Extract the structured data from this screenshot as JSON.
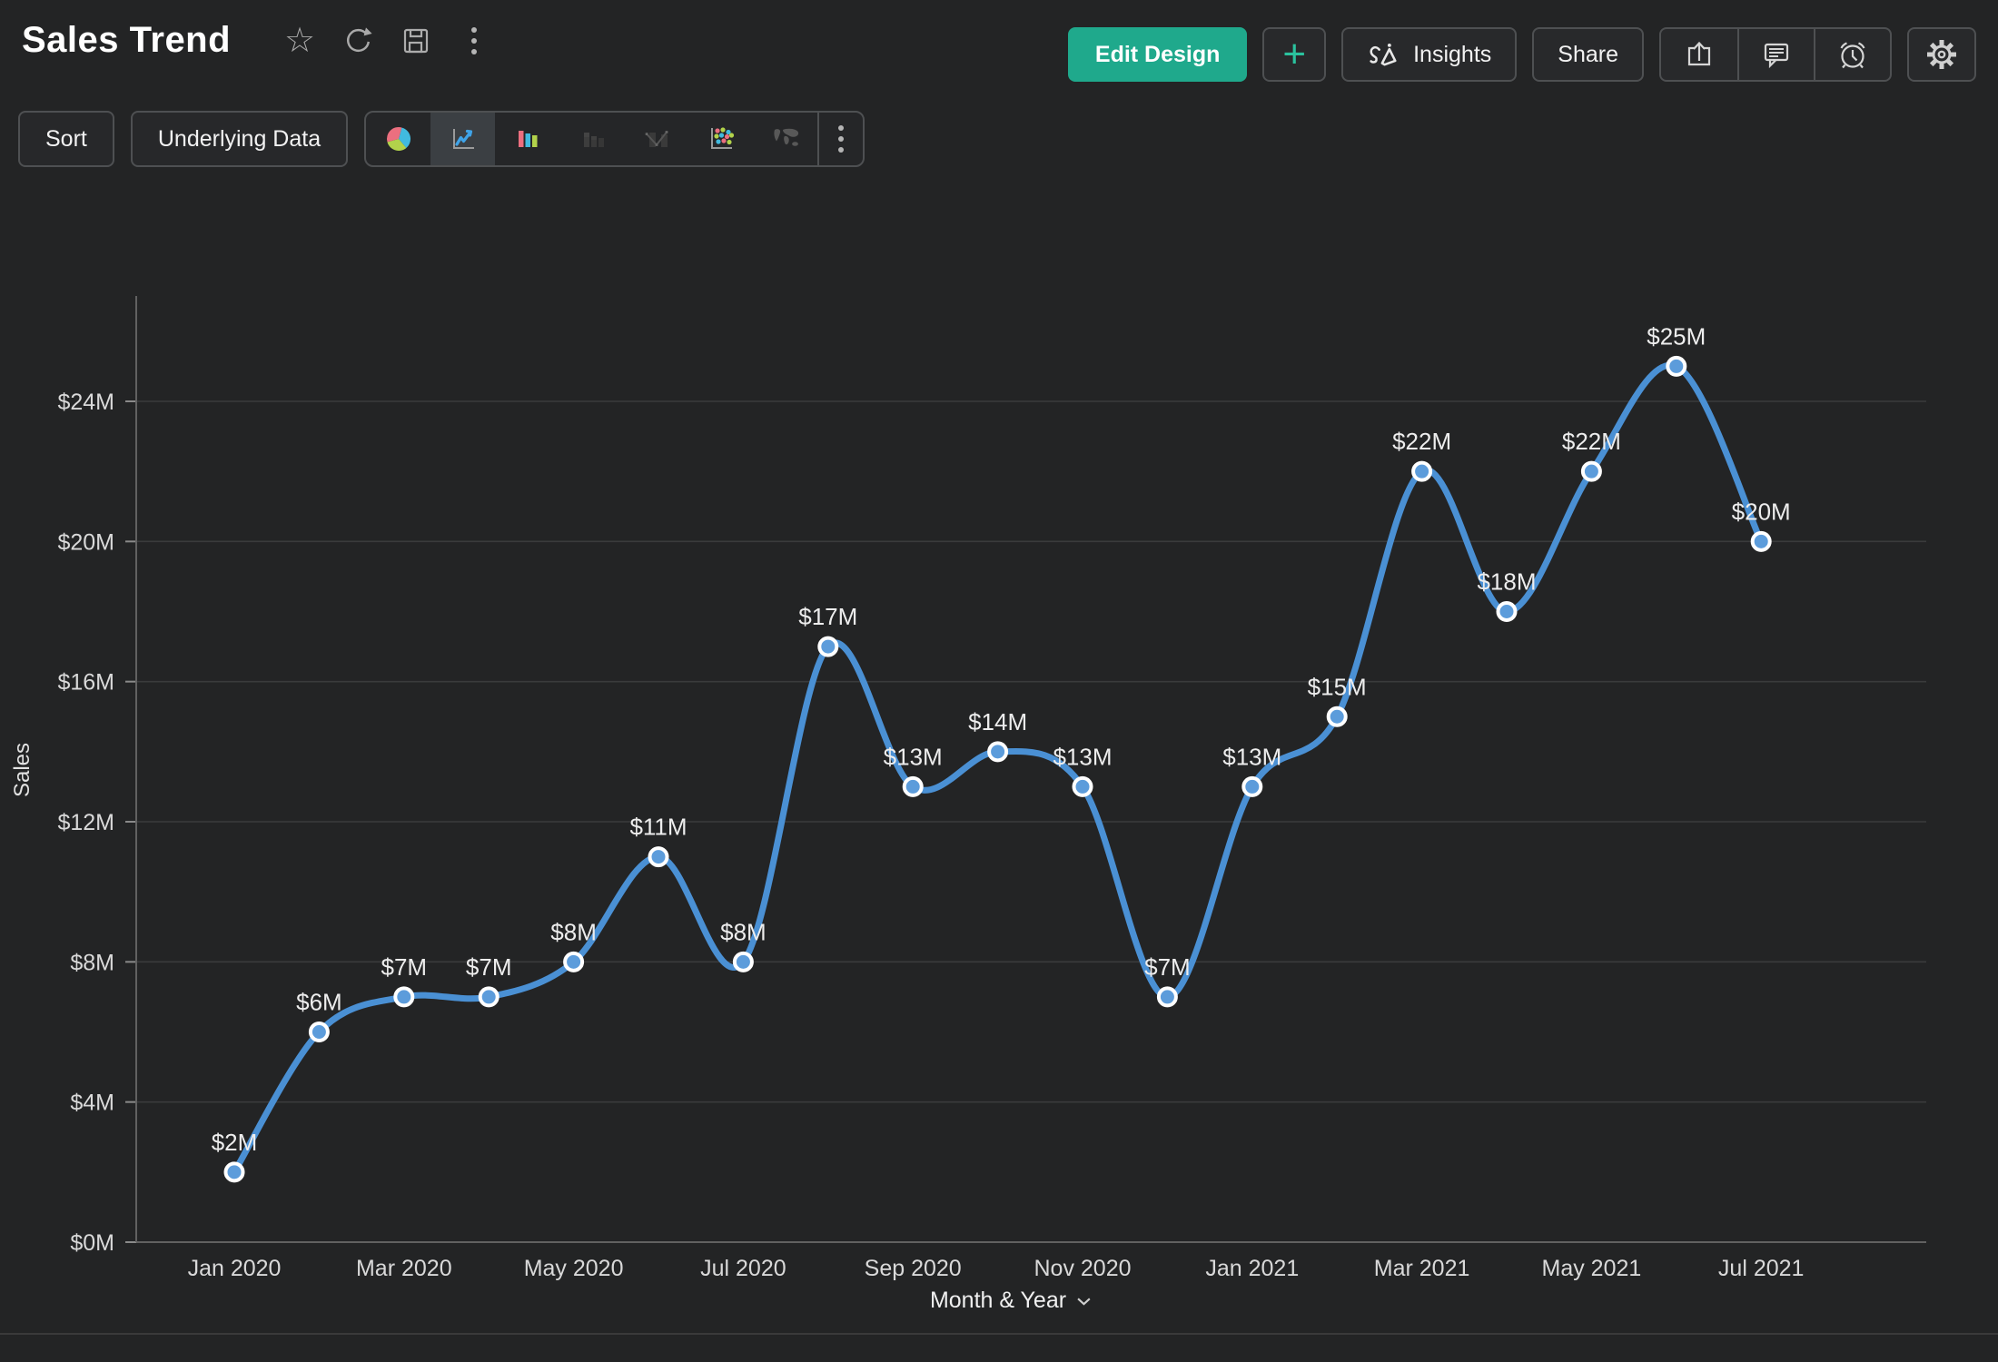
{
  "header": {
    "title": "Sales Trend",
    "icons": [
      "favorite-star",
      "refresh",
      "save",
      "more-options"
    ]
  },
  "actions": {
    "edit_design": "Edit Design",
    "add": "+",
    "insights": "Insights",
    "share": "Share",
    "icon_buttons": [
      "export",
      "comments",
      "alerts",
      "settings"
    ]
  },
  "view_toolbar": {
    "sort": "Sort",
    "underlying_data": "Underlying Data",
    "chart_types": [
      {
        "name": "pie-chart",
        "enabled": true,
        "selected": false
      },
      {
        "name": "line-chart",
        "enabled": true,
        "selected": true
      },
      {
        "name": "bar-chart",
        "enabled": true,
        "selected": false
      },
      {
        "name": "stacked-bar-chart",
        "enabled": false,
        "selected": false
      },
      {
        "name": "combo-chart",
        "enabled": false,
        "selected": false
      },
      {
        "name": "scatter-chart",
        "enabled": true,
        "selected": false
      },
      {
        "name": "map-chart",
        "enabled": true,
        "selected": false
      }
    ]
  },
  "chart_data": {
    "type": "line",
    "title": "Sales Trend",
    "xlabel": "Month & Year",
    "ylabel": "Sales",
    "categories": [
      "Jan 2020",
      "Feb 2020",
      "Mar 2020",
      "Apr 2020",
      "May 2020",
      "Jun 2020",
      "Jul 2020",
      "Aug 2020",
      "Sep 2020",
      "Oct 2020",
      "Nov 2020",
      "Dec 2020",
      "Jan 2021",
      "Feb 2021",
      "Mar 2021",
      "Apr 2021",
      "May 2021",
      "Jun 2021",
      "Jul 2021"
    ],
    "values": [
      2,
      6,
      7,
      7,
      8,
      11,
      8,
      17,
      13,
      14,
      13,
      7,
      13,
      15,
      22,
      18,
      22,
      25,
      20
    ],
    "data_labels": [
      "$2M",
      "$6M",
      "$7M",
      "$7M",
      "$8M",
      "$11M",
      "$8M",
      "$17M",
      "$13M",
      "$14M",
      "$13M",
      "$7M",
      "$13M",
      "$15M",
      "$22M",
      "$18M",
      "$22M",
      "$25M",
      "$20M"
    ],
    "x_tick_labels": [
      "Jan 2020",
      "Mar 2020",
      "May 2020",
      "Jul 2020",
      "Sep 2020",
      "Nov 2020",
      "Jan 2021",
      "Mar 2021",
      "May 2021",
      "Jul 2021"
    ],
    "x_label_every": 2,
    "y_ticks": [
      0,
      4,
      8,
      12,
      16,
      20,
      24
    ],
    "y_tick_labels": [
      "$0M",
      "$4M",
      "$8M",
      "$12M",
      "$16M",
      "$20M",
      "$24M"
    ],
    "ylim": [
      0,
      27
    ],
    "grid": "horizontal",
    "legend": "none",
    "line_color": "#4A90D4",
    "marker_fill": "#5C9CDB",
    "marker_stroke": "#FFFFFF"
  },
  "colors": {
    "background": "#232425",
    "accent_green": "#1FA98C",
    "accent_teal": "#2BC29E",
    "grid": "#3A3B3C",
    "axis": "#616161",
    "icon_red": "#EC6F7F",
    "icon_blue": "#41BADF",
    "icon_green": "#B2D24B"
  }
}
